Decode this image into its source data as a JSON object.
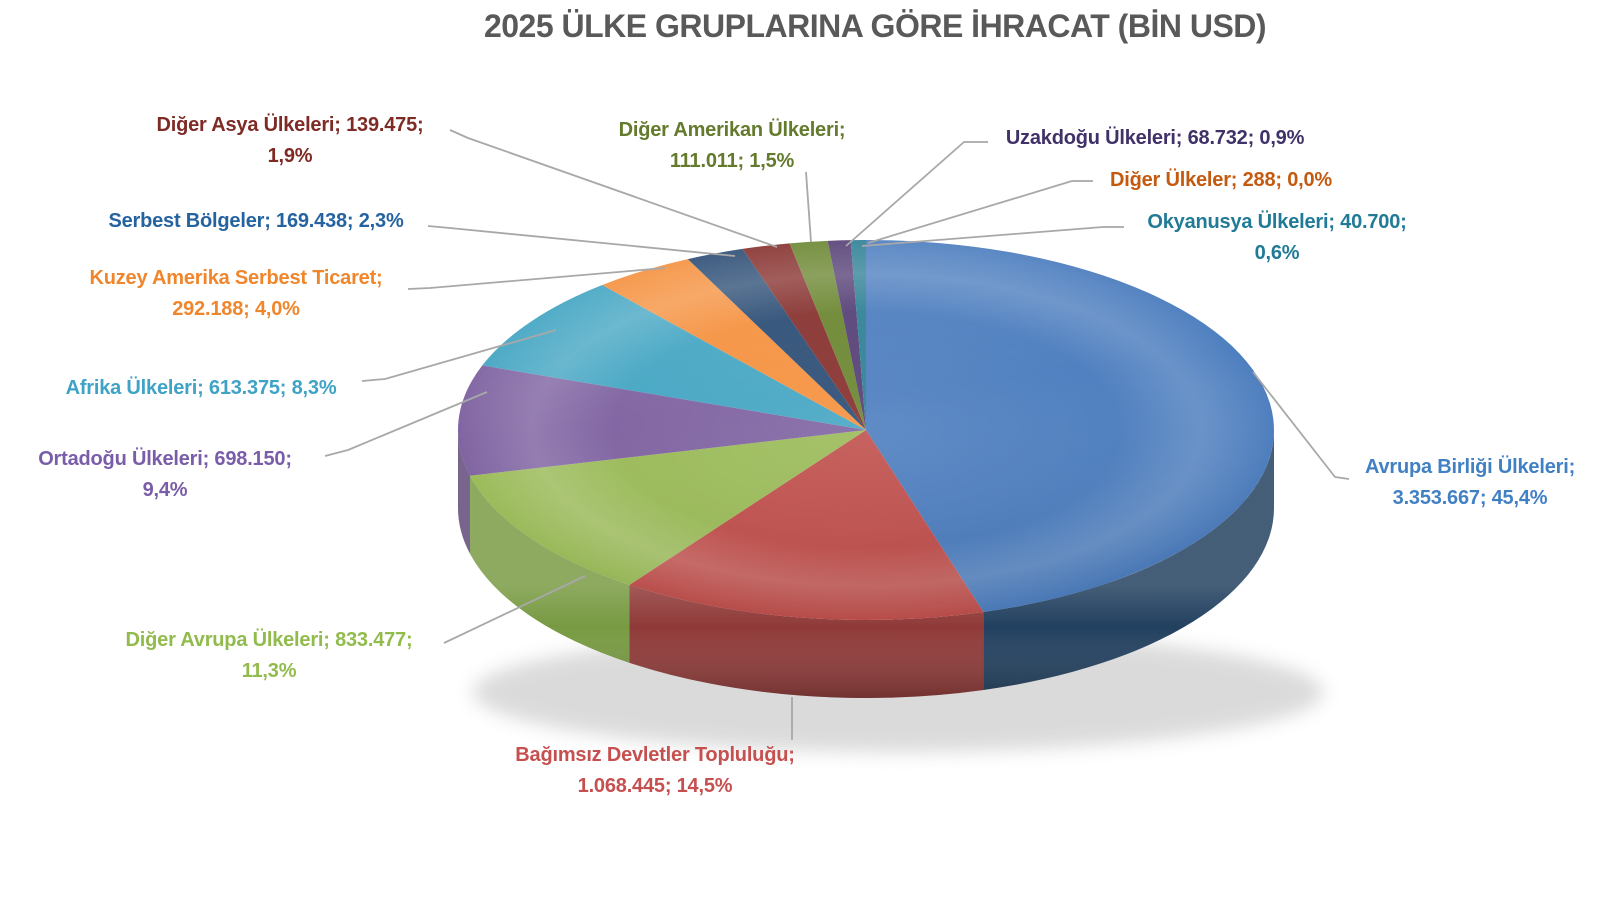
{
  "title": "2025 ÜLKE GRUPLARINA GÖRE İHRACAT (BİN USD)",
  "chart_data": {
    "type": "pie",
    "is_3d": true,
    "title": "2025 ÜLKE GRUPLARINA GÖRE İHRACAT (BİN USD)",
    "unit": "BİN USD",
    "legend": "none",
    "label_style": "outside labels with gray leader lines, format: name; value; percent",
    "start_angle_deg": -90,
    "direction": "clockwise",
    "leader_line_color": "#a8a8a8",
    "title_color": "#595959",
    "slices": [
      {
        "id": "avrupa-birligi",
        "name": "Avrupa Birliği Ülkeleri",
        "value": 3353667,
        "value_label": "3.353.667",
        "pct": 45.4,
        "pct_label": "45,4%",
        "color": "#4d7ebf",
        "side_color": "#22405f",
        "label_color": "#4280c4",
        "label_text": "Avrupa Birliği Ülkeleri;\n3.353.667; 45,4%"
      },
      {
        "id": "bagimsiz",
        "name": "Bağımsız Devletler Topluluğu",
        "value": 1068445,
        "value_label": "1.068.445",
        "pct": 14.5,
        "pct_label": "14,5%",
        "color": "#c0504d",
        "side_color": "#8f3a38",
        "label_color": "#c6504f",
        "label_text": "Bağımsız Devletler Topluluğu;\n1.068.445; 14,5%"
      },
      {
        "id": "diger-avrupa",
        "name": "Diğer Avrupa Ülkeleri",
        "value": 833477,
        "value_label": "833.477",
        "pct": 11.3,
        "pct_label": "11,3%",
        "color": "#9bbb59",
        "side_color": "#789a42",
        "label_color": "#92bb4d",
        "label_text": "Diğer Avrupa Ülkeleri; 833.477;\n11,3%"
      },
      {
        "id": "ortadogu",
        "name": "Ortadoğu Ülkeleri",
        "value": 698150,
        "value_label": "698.150",
        "pct": 9.4,
        "pct_label": "9,4%",
        "color": "#8064a2",
        "side_color": "#5d4878",
        "label_color": "#7a5da8",
        "label_text": "Ortadoğu Ülkeleri; 698.150;\n9,4%"
      },
      {
        "id": "afrika",
        "name": "Afrika Ülkeleri",
        "value": 613375,
        "value_label": "613.375",
        "pct": 8.3,
        "pct_label": "8,3%",
        "color": "#45a6c3",
        "side_color": "#2f7b93",
        "label_color": "#3fa3c6",
        "label_text": "Afrika Ülkeleri; 613.375; 8,3%"
      },
      {
        "id": "kuzey-amerika",
        "name": "Kuzey Amerika Serbest Ticaret",
        "value": 292188,
        "value_label": "292.188",
        "pct": 4.0,
        "pct_label": "4,0%",
        "color": "#f5913f",
        "side_color": "#c26a20",
        "label_color": "#f0862c",
        "label_text": "Kuzey Amerika Serbest Ticaret;\n292.188; 4,0%"
      },
      {
        "id": "serbest-bolgeler",
        "name": "Serbest Bölgeler",
        "value": 169438,
        "value_label": "169.438",
        "pct": 2.3,
        "pct_label": "2,3%",
        "color": "#2c4d75",
        "side_color": "#1d3450",
        "label_color": "#2563a0",
        "label_text": "Serbest Bölgeler; 169.438; 2,3%"
      },
      {
        "id": "diger-asya",
        "name": "Diğer Asya Ülkeleri",
        "value": 139475,
        "value_label": "139.475",
        "pct": 1.9,
        "pct_label": "1,9%",
        "color": "#86302d",
        "side_color": "#5e211f",
        "label_color": "#7e2b26",
        "label_text": "Diğer Asya Ülkeleri; 139.475;\n1,9%"
      },
      {
        "id": "diger-amerikan",
        "name": "Diğer Amerikan Ülkeleri",
        "value": 111011,
        "value_label": "111.011",
        "pct": 1.5,
        "pct_label": "1,5%",
        "color": "#6a8630",
        "side_color": "#4a5e21",
        "label_color": "#647a2d",
        "label_text": "Diğer Amerikan Ülkeleri;\n111.011; 1,5%"
      },
      {
        "id": "uzakdogu",
        "name": "Uzakdoğu Ülkeleri",
        "value": 68732,
        "value_label": "68.732",
        "pct": 0.9,
        "pct_label": "0,9%",
        "color": "#553f75",
        "side_color": "#3b2c52",
        "label_color": "#403168",
        "label_text": "Uzakdoğu Ülkeleri; 68.732; 0,9%"
      },
      {
        "id": "okyanusya",
        "name": "Okyanusya Ülkeleri",
        "value": 40700,
        "value_label": "40.700",
        "pct": 0.6,
        "pct_label": "0,6%",
        "color": "#2e8095",
        "side_color": "#1f5a69",
        "label_color": "#217a96",
        "label_text": "Okyanusya Ülkeleri; 40.700;\n0,6%"
      },
      {
        "id": "diger-ulkeler",
        "name": "Diğer Ülkeler",
        "value": 288,
        "value_label": "288",
        "pct": 0.0,
        "pct_label": "0,0%",
        "color": "#b65708",
        "side_color": "#7e3c05",
        "label_color": "#c45a10",
        "label_text": "Diğer Ülkeler; 288; 0,0%"
      }
    ]
  }
}
